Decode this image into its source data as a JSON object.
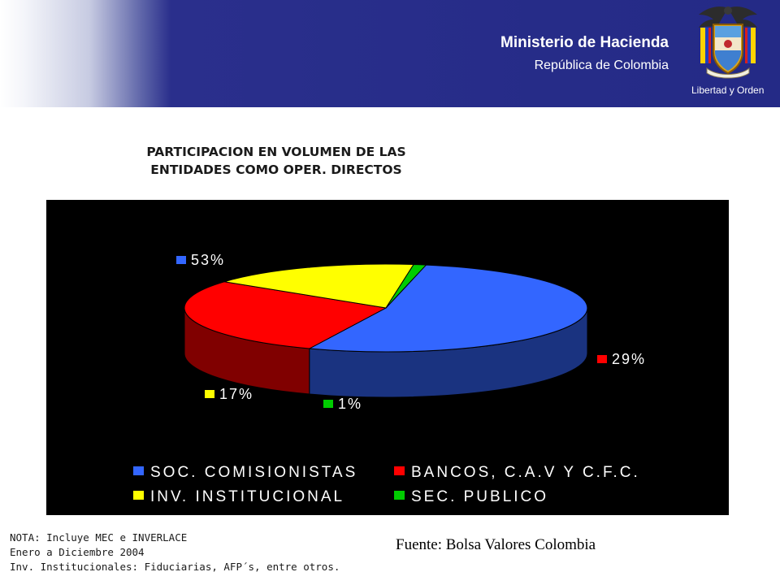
{
  "header": {
    "ministry": "Ministerio de Hacienda",
    "republic": "República de Colombia",
    "motto": "Libertad y Orden",
    "logo": "colombia-coat-of-arms",
    "colors": {
      "header_bg": "#242a86"
    }
  },
  "chart_data": {
    "type": "pie",
    "title": [
      "PARTICIPACION EN VOLUMEN DE LAS",
      "ENTIDADES COMO OPER. DIRECTOS"
    ],
    "style": "3d",
    "background": "#000000",
    "legend_position": "bottom",
    "slices": [
      {
        "name": "SOC. COMISIONISTAS",
        "value": 53,
        "label": "53%",
        "color": "#3366ff"
      },
      {
        "name": "BANCOS, C.A.V Y C.F.C.",
        "value": 29,
        "label": "29%",
        "color": "#ff0000"
      },
      {
        "name": "INV. INSTITUCIONAL",
        "value": 17,
        "label": "17%",
        "color": "#ffff00"
      },
      {
        "name": "SEC. PUBLICO",
        "value": 1,
        "label": "1%",
        "color": "#00cc00"
      }
    ]
  },
  "notes": [
    "NOTA: Incluye MEC e INVERLACE",
    "Enero a Diciembre 2004",
    "Inv. Institucionales: Fiduciarias, AFP´s, entre otros."
  ],
  "source": "Fuente: Bolsa Valores Colombia"
}
